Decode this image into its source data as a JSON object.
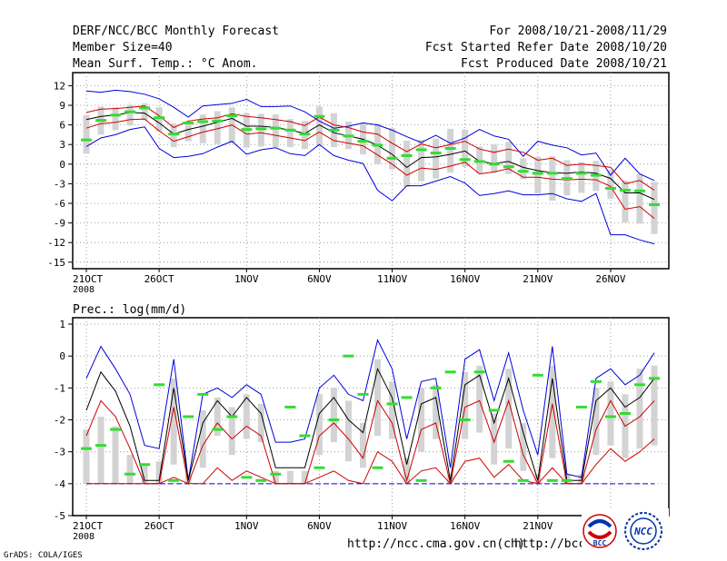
{
  "header": {
    "title": "DERF/NCC/BCC Monthly Forecast",
    "member_size": "Member Size=40",
    "variable": "Mean Surf. Temp.: °C Anom.",
    "period": "For 2008/10/21-2008/11/29",
    "started": "Fcst Started Refer Date 2008/10/20",
    "produced": "Fcst Produced Date 2008/10/21"
  },
  "footer": {
    "url_left": "http://ncc.cma.gov.cn(ch)",
    "url_right": "http://bcc.c",
    "grads_credit": "GrADS: COLA/IGES",
    "logo_bcc": "BCC",
    "logo_ncc": "NCC"
  },
  "colors": {
    "ensemble_box": "#d3d3d3",
    "member_green": "#33dd33",
    "envelope_blue": "#0000dd",
    "spread_red": "#cc0000",
    "mean_black": "#000000",
    "grid": "#888888"
  },
  "chart_data": [
    {
      "type": "box-ensemble",
      "title": "Mean Surf. Temp.: °C Anom.",
      "xlabel": "",
      "ylabel": "°C Anom.",
      "ylim": [
        -16,
        14
      ],
      "yticks": [
        12,
        9,
        6,
        3,
        0,
        -3,
        -6,
        -9,
        -12,
        -15
      ],
      "ytick_labels": [
        "12",
        "9",
        "6",
        "3",
        "0",
        "-3",
        "-6",
        "-9",
        "-12",
        "-15"
      ],
      "x_tick_days": [
        0,
        5,
        11,
        16,
        21,
        26,
        31,
        36
      ],
      "x_tick_labels": [
        "21OCT",
        "26OCT",
        "1NOV",
        "6NOV",
        "11NOV",
        "16NOV",
        "21NOV",
        "26NOV"
      ],
      "x_first_year": "2008",
      "grid": true,
      "days": 40,
      "series": [
        {
          "name": "upper envelope",
          "color": "blue",
          "values": [
            11.2,
            11.0,
            11.3,
            11.1,
            10.7,
            10.0,
            8.7,
            7.2,
            8.9,
            9.1,
            9.3,
            9.9,
            8.8,
            8.8,
            8.9,
            8.0,
            6.6,
            5.5,
            5.8,
            6.3,
            6.0,
            5.2,
            4.2,
            3.3,
            4.4,
            3.2,
            4.0,
            5.3,
            4.3,
            3.8,
            1.2,
            3.5,
            2.9,
            2.5,
            1.4,
            1.7,
            -1.7,
            0.9,
            -1.5,
            -2.5
          ]
        },
        {
          "name": "upper spread",
          "color": "red",
          "values": [
            7.9,
            8.4,
            8.5,
            8.7,
            8.9,
            7.4,
            5.6,
            6.6,
            6.9,
            7.1,
            7.7,
            7.3,
            7.1,
            6.8,
            6.5,
            5.9,
            7.2,
            6.0,
            5.6,
            4.9,
            4.6,
            3.2,
            1.9,
            3.1,
            2.5,
            3.0,
            3.5,
            2.3,
            1.8,
            2.3,
            1.8,
            0.6,
            0.9,
            -0.2,
            0.0,
            -0.2,
            -0.5,
            -3.0,
            -2.5,
            -4.0
          ]
        },
        {
          "name": "ensemble mean",
          "color": "black",
          "values": [
            6.8,
            7.3,
            7.5,
            7.9,
            7.8,
            6.3,
            4.6,
            5.3,
            5.8,
            6.4,
            7.0,
            5.8,
            5.8,
            5.6,
            5.2,
            4.7,
            6.0,
            4.8,
            4.3,
            3.8,
            2.9,
            1.5,
            -0.5,
            1.0,
            1.1,
            1.5,
            2.0,
            0.4,
            0.1,
            0.4,
            -0.5,
            -1.0,
            -1.3,
            -1.4,
            -1.2,
            -1.4,
            -2.2,
            -4.4,
            -4.4,
            -5.4
          ]
        },
        {
          "name": "lower spread",
          "color": "red",
          "values": [
            5.5,
            6.2,
            6.4,
            6.8,
            6.9,
            5.1,
            3.5,
            4.2,
            4.9,
            5.4,
            6.0,
            4.6,
            4.8,
            4.4,
            4.0,
            3.6,
            4.9,
            3.6,
            3.2,
            2.8,
            1.4,
            0.0,
            -1.7,
            -0.6,
            -0.8,
            -0.3,
            0.3,
            -1.5,
            -1.2,
            -0.7,
            -2.0,
            -2.0,
            -2.3,
            -2.4,
            -2.3,
            -2.4,
            -3.4,
            -6.9,
            -6.5,
            -8.3
          ]
        },
        {
          "name": "lower envelope",
          "color": "blue",
          "values": [
            2.7,
            4.0,
            4.5,
            5.3,
            5.7,
            2.4,
            1.0,
            1.2,
            1.6,
            2.6,
            3.5,
            1.5,
            2.2,
            2.5,
            1.6,
            1.3,
            3.0,
            1.3,
            0.6,
            0.1,
            -4.0,
            -5.6,
            -3.3,
            -3.3,
            -2.6,
            -1.9,
            -2.9,
            -4.8,
            -4.5,
            -4.1,
            -4.7,
            -4.7,
            -4.5,
            -5.3,
            -5.7,
            -4.5,
            -10.8,
            -10.8,
            -11.6,
            -12.2
          ]
        },
        {
          "name": "member",
          "color": "green",
          "values": [
            3.7,
            6.7,
            7.5,
            8.0,
            8.6,
            7.1,
            4.6,
            6.3,
            6.5,
            6.6,
            7.4,
            5.3,
            5.4,
            5.5,
            5.2,
            4.6,
            7.3,
            5.2,
            4.3,
            3.5,
            2.9,
            0.9,
            1.3,
            2.2,
            1.7,
            2.4,
            0.7,
            0.4,
            0.0,
            -0.4,
            -1.1,
            -1.4,
            -1.4,
            -2.2,
            -1.4,
            -1.7,
            -3.7,
            -4.0,
            -4.1,
            -6.2
          ]
        }
      ],
      "box_low": [
        1.6,
        4.5,
        5.2,
        5.9,
        6.7,
        5.0,
        2.6,
        3.5,
        3.2,
        3.1,
        3.2,
        2.5,
        2.7,
        2.6,
        2.6,
        2.3,
        2.7,
        2.6,
        2.3,
        1.5,
        0.0,
        -0.8,
        -3.5,
        -2.6,
        -2.2,
        -1.3,
        -0.4,
        -1.4,
        -1.3,
        -1.5,
        -2.3,
        -4.5,
        -5.6,
        -4.8,
        -4.4,
        -4.1,
        -5.3,
        -8.9,
        -9.1,
        -10.7
      ],
      "box_high": [
        7.5,
        8.8,
        8.7,
        9.1,
        9.3,
        8.7,
        6.2,
        6.3,
        7.6,
        8.1,
        8.7,
        7.8,
        7.7,
        7.6,
        6.9,
        6.6,
        8.8,
        7.8,
        6.5,
        6.3,
        6.2,
        5.5,
        3.6,
        3.7,
        3.9,
        5.4,
        5.3,
        2.7,
        3.0,
        3.4,
        0.9,
        1.1,
        1.2,
        0.6,
        0.3,
        0.5,
        -0.9,
        -2.5,
        -1.5,
        -2.7
      ],
      "box_color": "gray"
    },
    {
      "type": "box-ensemble",
      "title": "Prec.: log(mm/d)",
      "xlabel": "",
      "ylabel": "log(mm/d)",
      "ylim": [
        -5,
        1.2
      ],
      "yticks": [
        1,
        0,
        -1,
        -2,
        -3,
        -4,
        -5
      ],
      "ytick_labels": [
        "1",
        "0",
        "-1",
        "-2",
        "-3",
        "-4",
        "-5"
      ],
      "x_tick_days": [
        0,
        5,
        11,
        16,
        21,
        26,
        31,
        36
      ],
      "x_tick_labels": [
        "21OCT",
        "26OCT",
        "1NOV",
        "6NOV",
        "11NOV",
        "16NOV",
        "21NOV",
        "26NOV"
      ],
      "x_first_year": "2008",
      "grid": true,
      "days": 40,
      "baseline": -4.0,
      "series": [
        {
          "name": "upper envelope",
          "color": "blue",
          "values": [
            -0.7,
            0.3,
            -0.4,
            -1.2,
            -2.8,
            -2.9,
            -0.1,
            -3.9,
            -1.2,
            -1.0,
            -1.3,
            -0.9,
            -1.2,
            -2.7,
            -2.7,
            -2.6,
            -1.0,
            -0.6,
            -1.2,
            -1.4,
            0.5,
            -0.4,
            -2.6,
            -0.8,
            -0.7,
            -3.5,
            -0.1,
            0.2,
            -1.4,
            0.1,
            -1.7,
            -3.1,
            0.3,
            -3.7,
            -3.8,
            -0.7,
            -0.4,
            -0.9,
            -0.6,
            0.1
          ]
        },
        {
          "name": "ensemble mean",
          "color": "black",
          "values": [
            -1.7,
            -0.5,
            -1.1,
            -2.2,
            -3.9,
            -3.9,
            -1.0,
            -3.9,
            -2.1,
            -1.4,
            -1.9,
            -1.3,
            -1.8,
            -3.5,
            -3.5,
            -3.5,
            -1.8,
            -1.3,
            -2.0,
            -2.4,
            -0.4,
            -1.3,
            -3.4,
            -1.5,
            -1.3,
            -3.9,
            -0.9,
            -0.6,
            -2.1,
            -0.7,
            -2.4,
            -3.9,
            -0.7,
            -3.9,
            -3.9,
            -1.4,
            -1.0,
            -1.6,
            -1.3,
            -0.7
          ]
        },
        {
          "name": "upper spread",
          "color": "red",
          "values": [
            -2.5,
            -1.4,
            -1.9,
            -2.9,
            -4.0,
            -4.0,
            -1.6,
            -4.0,
            -2.8,
            -2.1,
            -2.6,
            -2.2,
            -2.5,
            -4.0,
            -4.0,
            -4.0,
            -2.5,
            -2.1,
            -2.6,
            -3.2,
            -1.4,
            -2.1,
            -3.9,
            -2.3,
            -2.1,
            -4.0,
            -1.6,
            -1.4,
            -2.7,
            -1.4,
            -3.1,
            -4.0,
            -1.5,
            -4.0,
            -4.0,
            -2.3,
            -1.4,
            -2.2,
            -1.9,
            -1.4
          ]
        },
        {
          "name": "lower spread",
          "color": "red",
          "values": [
            -4.0,
            -4.0,
            -4.0,
            -4.0,
            -4.0,
            -4.0,
            -3.8,
            -4.0,
            -4.0,
            -3.5,
            -3.9,
            -3.6,
            -3.8,
            -4.0,
            -4.0,
            -4.0,
            -3.8,
            -3.6,
            -3.9,
            -4.0,
            -3.0,
            -3.3,
            -4.0,
            -3.6,
            -3.5,
            -4.0,
            -3.3,
            -3.2,
            -3.8,
            -3.4,
            -3.9,
            -4.0,
            -3.5,
            -4.0,
            -4.0,
            -3.4,
            -2.9,
            -3.3,
            -3.0,
            -2.6
          ]
        },
        {
          "name": "member",
          "color": "green",
          "values": [
            -2.9,
            -2.8,
            -2.3,
            -3.7,
            -3.4,
            -0.9,
            -3.9,
            -1.9,
            -1.2,
            -2.3,
            -1.9,
            -3.8,
            -3.9,
            -3.7,
            -1.6,
            -2.5,
            -3.5,
            -2.0,
            0.0,
            -1.2,
            -3.5,
            -1.5,
            -1.3,
            -3.9,
            -1.0,
            -0.5,
            -2.0,
            -0.5,
            -1.7,
            -3.3,
            -3.9,
            -0.6,
            -3.9,
            -3.9,
            -1.6,
            -0.8,
            -1.9,
            -1.8,
            -0.9,
            -0.7
          ]
        }
      ],
      "box_low": [
        -4.0,
        -4.0,
        -4.0,
        -4.0,
        -4.0,
        -4.0,
        -3.4,
        -4.0,
        -3.5,
        -2.5,
        -3.1,
        -2.6,
        -2.7,
        -4.0,
        -4.0,
        -4.0,
        -3.1,
        -2.7,
        -3.3,
        -3.5,
        -2.5,
        -2.6,
        -4.0,
        -3.0,
        -2.6,
        -4.0,
        -2.6,
        -2.4,
        -3.4,
        -2.9,
        -3.6,
        -4.0,
        -3.2,
        -4.0,
        -4.0,
        -3.1,
        -2.8,
        -3.2,
        -2.9,
        -2.8
      ],
      "box_high": [
        -2.3,
        -1.9,
        -2.2,
        -3.1,
        -3.4,
        -3.3,
        -0.7,
        -3.7,
        -1.7,
        -1.3,
        -1.6,
        -1.2,
        -1.5,
        -3.6,
        -3.6,
        -3.6,
        -1.2,
        -1.0,
        -1.4,
        -2.1,
        -0.1,
        -0.8,
        -3.2,
        -1.0,
        -0.9,
        -3.7,
        -0.5,
        -0.3,
        -1.8,
        -0.4,
        -2.1,
        -3.7,
        -0.3,
        -3.7,
        -3.7,
        -1.0,
        -0.8,
        -1.2,
        -0.4,
        -0.3
      ],
      "box_color": "gray"
    }
  ]
}
